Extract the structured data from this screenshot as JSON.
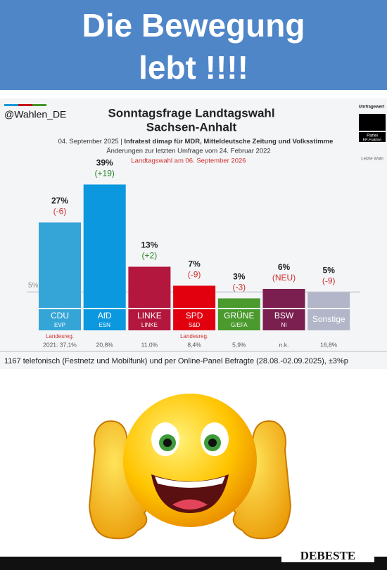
{
  "header": {
    "lines": [
      "Die Bewegung",
      "lebt !!!!"
    ]
  },
  "chart_data": {
    "type": "bar",
    "source": "@Wahlen_DE",
    "title_lines": [
      "Sonntagsfrage Landtagswahl",
      "Sachsen-Anhalt"
    ],
    "subtitle_parts": [
      "04. September 2025 | ",
      "Infratest dimap für MDR, Mitteldeutsche Zeitung und Volksstimme"
    ],
    "comparison_note": "Änderungen zur letzten Umfrage vom 24. Februar 2022",
    "election_note": "Landtagswahl am 06. September 2026",
    "legend": {
      "value": "Umfragewert",
      "party": "Partei",
      "group": "EP-Fraktion",
      "last": "Letzte Wahl"
    },
    "categories": [
      "CDU",
      "AfD",
      "LINKE",
      "SPD",
      "GRÜNE",
      "BSW",
      "Sonstige"
    ],
    "groups": [
      "EVP",
      "ESN",
      "LINKE",
      "S&D",
      "G/EFA",
      "NI",
      null
    ],
    "colors": [
      "#35a5d8",
      "#0b98df",
      "#b3173d",
      "#e2000f",
      "#4a9a2e",
      "#7b1f50",
      "#b2b6c8"
    ],
    "values": [
      27,
      39,
      13,
      7,
      3,
      6,
      5
    ],
    "value_labels": [
      "27%",
      "39%",
      "13%",
      "7%",
      "3%",
      "6%",
      "5%"
    ],
    "change_labels": [
      "(-6)",
      "(+19)",
      "(+2)",
      "(-9)",
      "(-3)",
      "(NEU)",
      "(-9)"
    ],
    "government_labels": [
      "Landesreg.",
      null,
      null,
      "Landesreg.",
      null,
      null,
      null
    ],
    "last_election_labels": [
      "2021: 37,1%",
      "20,8%",
      "11,0%",
      "8,4%",
      "5,9%",
      "n.k.",
      "16,8%"
    ],
    "reference_line": {
      "value": 5,
      "label": "5%"
    },
    "footnote": "1167 telefonisch (Festnetz und Mobilfunk) und per Online-Panel Befragte (28.08.-02.09.2025), ±3%p"
  },
  "watermark": "DEBESTE"
}
